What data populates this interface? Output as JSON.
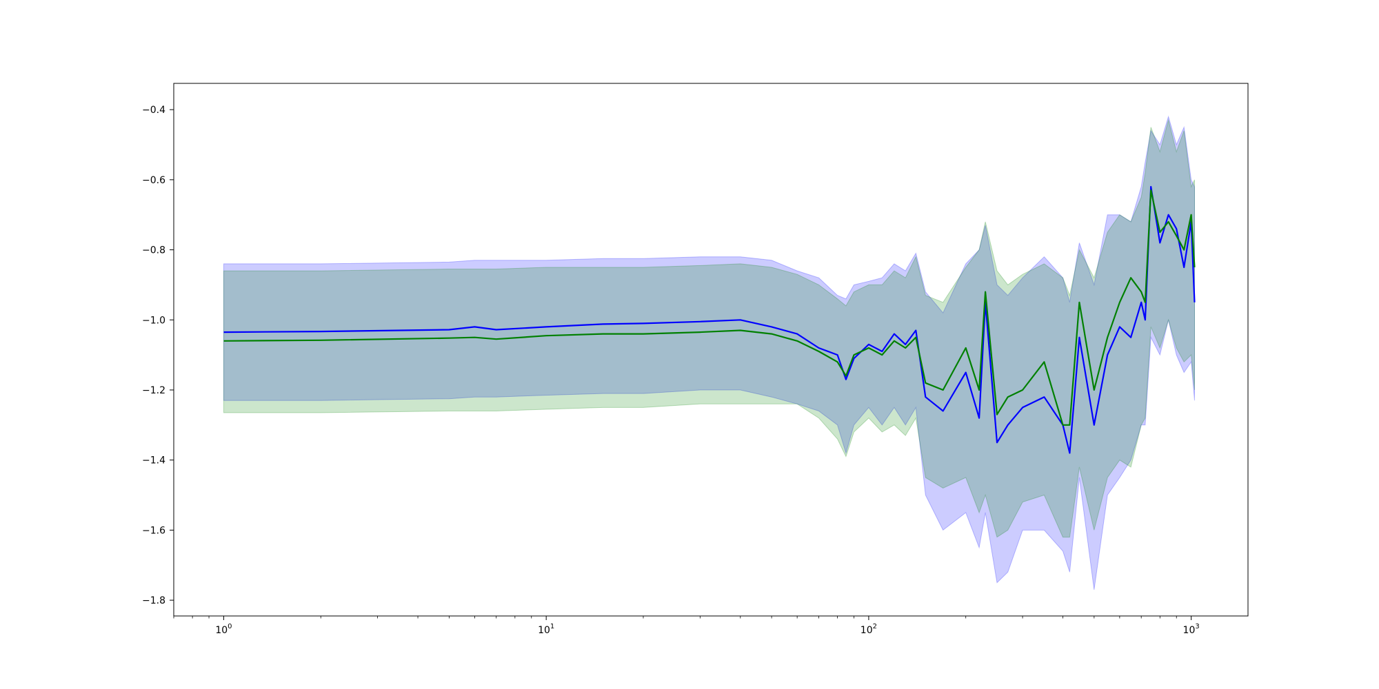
{
  "chart_data": {
    "type": "line",
    "title": "",
    "xlabel": "",
    "ylabel": "",
    "xscale": "log",
    "xlim": [
      0.7,
      1500
    ],
    "ylim": [
      -1.845,
      -0.325
    ],
    "grid": false,
    "legend": "none",
    "x_ticks": [
      {
        "value": 1,
        "base": "10",
        "exp": "0"
      },
      {
        "value": 10,
        "base": "10",
        "exp": "1"
      },
      {
        "value": 100,
        "base": "10",
        "exp": "2"
      },
      {
        "value": 1000,
        "base": "10",
        "exp": "3"
      }
    ],
    "y_ticks": [
      {
        "value": -0.4,
        "label": "−0.4"
      },
      {
        "value": -0.6,
        "label": "−0.6"
      },
      {
        "value": -0.8,
        "label": "−0.8"
      },
      {
        "value": -1.0,
        "label": "−1.0"
      },
      {
        "value": -1.2,
        "label": "−1.2"
      },
      {
        "value": -1.4,
        "label": "−1.4"
      },
      {
        "value": -1.6,
        "label": "−1.6"
      },
      {
        "value": -1.8,
        "label": "−1.8"
      }
    ],
    "series": [
      {
        "color": "#0000ff",
        "band_color": "#0000ff",
        "band_opacity": 0.2,
        "x": [
          1,
          2,
          5,
          6,
          7,
          10,
          15,
          20,
          30,
          40,
          50,
          60,
          70,
          80,
          85,
          90,
          100,
          110,
          120,
          130,
          140,
          150,
          170,
          200,
          220,
          230,
          250,
          270,
          300,
          350,
          400,
          420,
          450,
          500,
          550,
          600,
          650,
          700,
          720,
          750,
          800,
          850,
          900,
          950,
          1000,
          1024
        ],
        "y": [
          -1.035,
          -1.033,
          -1.028,
          -1.02,
          -1.028,
          -1.02,
          -1.012,
          -1.01,
          -1.005,
          -1.0,
          -1.02,
          -1.04,
          -1.08,
          -1.1,
          -1.17,
          -1.11,
          -1.07,
          -1.09,
          -1.04,
          -1.07,
          -1.03,
          -1.22,
          -1.26,
          -1.15,
          -1.28,
          -0.95,
          -1.35,
          -1.3,
          -1.25,
          -1.22,
          -1.3,
          -1.38,
          -1.05,
          -1.3,
          -1.1,
          -1.02,
          -1.05,
          -0.95,
          -1.0,
          -0.62,
          -0.78,
          -0.7,
          -0.74,
          -0.85,
          -0.72,
          -0.95
        ],
        "upper": [
          -0.84,
          -0.84,
          -0.835,
          -0.83,
          -0.83,
          -0.83,
          -0.825,
          -0.825,
          -0.82,
          -0.82,
          -0.83,
          -0.86,
          -0.88,
          -0.93,
          -0.94,
          -0.9,
          -0.89,
          -0.88,
          -0.84,
          -0.86,
          -0.81,
          -0.92,
          -0.98,
          -0.84,
          -0.8,
          -0.73,
          -0.9,
          -0.93,
          -0.88,
          -0.82,
          -0.88,
          -0.95,
          -0.78,
          -0.9,
          -0.7,
          -0.7,
          -0.72,
          -0.62,
          -0.55,
          -0.46,
          -0.5,
          -0.42,
          -0.5,
          -0.45,
          -0.6,
          -0.62
        ],
        "lower": [
          -1.23,
          -1.23,
          -1.225,
          -1.22,
          -1.22,
          -1.215,
          -1.21,
          -1.21,
          -1.2,
          -1.2,
          -1.22,
          -1.24,
          -1.26,
          -1.3,
          -1.38,
          -1.3,
          -1.25,
          -1.3,
          -1.25,
          -1.3,
          -1.25,
          -1.5,
          -1.6,
          -1.55,
          -1.65,
          -1.55,
          -1.75,
          -1.72,
          -1.6,
          -1.6,
          -1.66,
          -1.72,
          -1.45,
          -1.77,
          -1.5,
          -1.45,
          -1.4,
          -1.3,
          -1.3,
          -1.05,
          -1.1,
          -1.0,
          -1.1,
          -1.15,
          -1.12,
          -1.23
        ]
      },
      {
        "color": "#008000",
        "band_color": "#008000",
        "band_opacity": 0.2,
        "x": [
          1,
          2,
          5,
          6,
          7,
          10,
          15,
          20,
          30,
          40,
          50,
          60,
          70,
          80,
          85,
          90,
          100,
          110,
          120,
          130,
          140,
          150,
          170,
          200,
          220,
          230,
          250,
          270,
          300,
          350,
          400,
          420,
          450,
          500,
          550,
          600,
          650,
          700,
          720,
          750,
          800,
          850,
          900,
          950,
          1000,
          1024
        ],
        "y": [
          -1.06,
          -1.058,
          -1.052,
          -1.05,
          -1.055,
          -1.045,
          -1.04,
          -1.04,
          -1.035,
          -1.03,
          -1.04,
          -1.06,
          -1.09,
          -1.12,
          -1.16,
          -1.1,
          -1.08,
          -1.1,
          -1.06,
          -1.08,
          -1.05,
          -1.18,
          -1.2,
          -1.08,
          -1.2,
          -0.92,
          -1.27,
          -1.22,
          -1.2,
          -1.12,
          -1.3,
          -1.3,
          -0.95,
          -1.2,
          -1.05,
          -0.95,
          -0.88,
          -0.92,
          -0.95,
          -0.63,
          -0.75,
          -0.72,
          -0.76,
          -0.8,
          -0.7,
          -0.85
        ],
        "upper": [
          -0.86,
          -0.86,
          -0.855,
          -0.855,
          -0.855,
          -0.85,
          -0.85,
          -0.85,
          -0.845,
          -0.84,
          -0.85,
          -0.87,
          -0.9,
          -0.94,
          -0.96,
          -0.92,
          -0.9,
          -0.9,
          -0.86,
          -0.88,
          -0.82,
          -0.93,
          -0.95,
          -0.85,
          -0.8,
          -0.72,
          -0.86,
          -0.9,
          -0.87,
          -0.84,
          -0.88,
          -0.93,
          -0.8,
          -0.88,
          -0.75,
          -0.7,
          -0.72,
          -0.65,
          -0.58,
          -0.45,
          -0.52,
          -0.43,
          -0.52,
          -0.46,
          -0.62,
          -0.6
        ],
        "lower": [
          -1.265,
          -1.265,
          -1.26,
          -1.26,
          -1.26,
          -1.255,
          -1.25,
          -1.25,
          -1.24,
          -1.24,
          -1.24,
          -1.24,
          -1.28,
          -1.34,
          -1.39,
          -1.32,
          -1.28,
          -1.32,
          -1.3,
          -1.33,
          -1.28,
          -1.45,
          -1.48,
          -1.45,
          -1.55,
          -1.5,
          -1.62,
          -1.6,
          -1.52,
          -1.5,
          -1.62,
          -1.62,
          -1.42,
          -1.6,
          -1.45,
          -1.4,
          -1.42,
          -1.3,
          -1.28,
          -1.02,
          -1.08,
          -1.0,
          -1.08,
          -1.12,
          -1.1,
          -1.2
        ]
      }
    ]
  }
}
